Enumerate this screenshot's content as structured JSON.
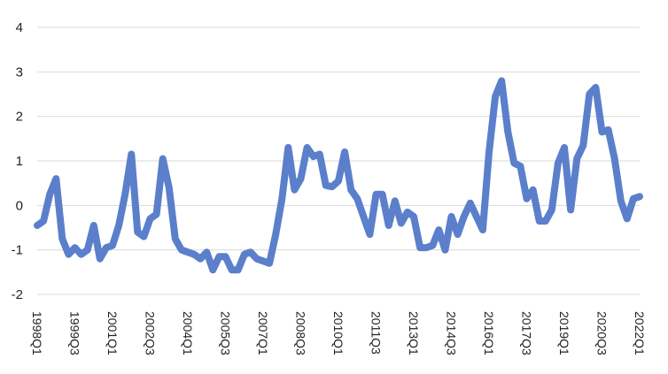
{
  "colors": {
    "series": "#5B7FCB",
    "grid": "#D9D9D9",
    "text": "#222222"
  },
  "chart_data": {
    "type": "line",
    "title": "",
    "xlabel": "",
    "ylabel": "",
    "ylim": [
      -2,
      4
    ],
    "yticks": [
      -2,
      -1,
      0,
      1,
      2,
      3,
      4
    ],
    "ytick_labels": [
      "-2",
      "-1",
      "0",
      "1",
      "2",
      "3",
      "4"
    ],
    "grid": true,
    "legend": "none",
    "x_ticks": [
      "1998Q1",
      "1999Q3",
      "2001Q1",
      "2002Q3",
      "2004Q1",
      "2005Q3",
      "2007Q1",
      "2008Q3",
      "2010Q1",
      "2011Q3",
      "2013Q1",
      "2014Q3",
      "2016Q1",
      "2017Q3",
      "2019Q1",
      "2020Q3",
      "2022Q1"
    ],
    "series": [
      {
        "values": [
          -0.45,
          -0.35,
          0.25,
          0.6,
          -0.75,
          -1.1,
          -0.95,
          -1.1,
          -1.0,
          -0.45,
          -1.2,
          -0.95,
          -0.9,
          -0.45,
          0.25,
          1.15,
          -0.6,
          -0.7,
          -0.3,
          -0.2,
          1.05,
          0.4,
          -0.75,
          -1.0,
          -1.05,
          -1.1,
          -1.2,
          -1.05,
          -1.45,
          -1.15,
          -1.15,
          -1.45,
          -1.45,
          -1.1,
          -1.05,
          -1.2,
          -1.25,
          -1.3,
          -0.65,
          0.15,
          1.3,
          0.35,
          0.6,
          1.3,
          1.1,
          1.15,
          0.45,
          0.42,
          0.55,
          1.2,
          0.35,
          0.15,
          -0.25,
          -0.65,
          0.25,
          0.25,
          -0.45,
          0.1,
          -0.4,
          -0.15,
          -0.25,
          -0.95,
          -0.95,
          -0.9,
          -0.55,
          -1.0,
          -0.25,
          -0.65,
          -0.25,
          0.05,
          -0.25,
          -0.55,
          1.2,
          2.45,
          2.8,
          1.65,
          0.95,
          0.88,
          0.15,
          0.35,
          -0.35,
          -0.35,
          -0.1,
          0.95,
          1.3,
          -0.1,
          1.05,
          1.35,
          2.5,
          2.65,
          1.65,
          1.7,
          1.05,
          0.1,
          -0.3,
          0.15,
          0.2
        ]
      }
    ]
  }
}
